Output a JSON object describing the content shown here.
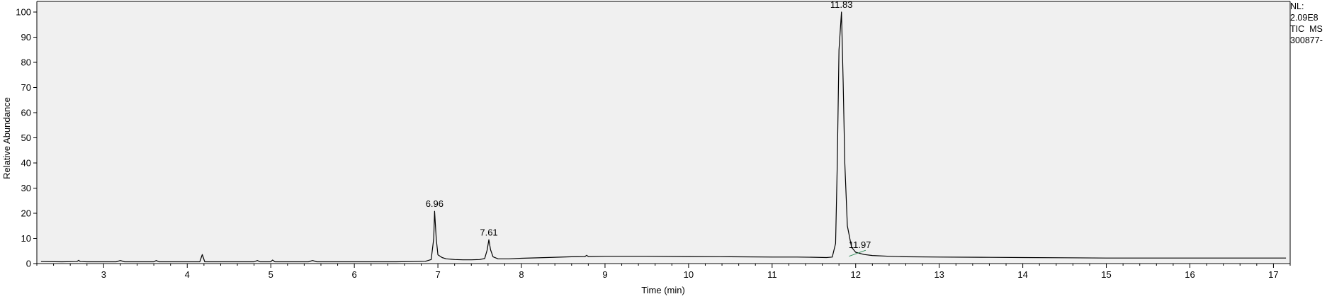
{
  "side_notes": {
    "nl_label": "NL:",
    "nl_value": "2.09E8",
    "scan_filter": "TIC  MS",
    "file_name": "300877-"
  },
  "chart_data": {
    "type": "line",
    "title": "",
    "xlabel": "Time (min)",
    "ylabel": "Relative Abundance",
    "xlim": [
      2.2,
      17.2
    ],
    "ylim": [
      0,
      100
    ],
    "x_ticks": [
      3,
      4,
      5,
      6,
      7,
      8,
      9,
      10,
      11,
      12,
      13,
      14,
      15,
      16,
      17
    ],
    "y_ticks": [
      0,
      10,
      20,
      30,
      40,
      50,
      60,
      70,
      80,
      90,
      100
    ],
    "grid": false,
    "background": "#f0f0f0",
    "line_color": "#000000",
    "annotation_line_color": "#2e8b57",
    "series": [
      {
        "x": [
          2.25,
          2.5,
          2.68,
          2.7,
          2.72,
          2.8,
          3.0,
          3.15,
          3.2,
          3.25,
          3.4,
          3.6,
          3.63,
          3.66,
          3.8,
          4.0,
          4.15,
          4.18,
          4.21,
          4.4,
          4.6,
          4.8,
          4.84,
          4.87,
          4.9,
          5.0,
          5.02,
          5.05,
          5.2,
          5.45,
          5.5,
          5.55,
          5.8,
          6.0,
          6.2,
          6.5,
          6.7,
          6.85,
          6.92,
          6.95,
          6.96,
          6.98,
          7.0,
          7.05,
          7.1,
          7.2,
          7.3,
          7.4,
          7.5,
          7.56,
          7.59,
          7.61,
          7.63,
          7.66,
          7.72,
          7.85,
          8.0,
          8.3,
          8.6,
          8.76,
          8.78,
          8.8,
          9.0,
          9.5,
          10.0,
          10.5,
          11.0,
          11.3,
          11.5,
          11.65,
          11.72,
          11.76,
          11.78,
          11.8,
          11.83,
          11.85,
          11.87,
          11.9,
          11.95,
          12.0,
          12.1,
          12.2,
          12.4,
          12.6,
          13.0,
          13.5,
          14.0,
          14.5,
          15.0,
          15.5,
          16.0,
          16.5,
          17.0,
          17.15
        ],
        "y": [
          0.8,
          0.7,
          0.8,
          1.3,
          0.8,
          0.7,
          0.7,
          0.7,
          1.2,
          0.7,
          0.7,
          0.7,
          1.2,
          0.7,
          0.7,
          0.7,
          0.7,
          3.6,
          0.7,
          0.7,
          0.7,
          0.7,
          1.2,
          0.7,
          0.7,
          0.7,
          1.4,
          0.7,
          0.7,
          0.7,
          1.2,
          0.7,
          0.7,
          0.7,
          0.7,
          0.7,
          0.8,
          0.9,
          1.6,
          10.0,
          20.8,
          10.0,
          3.5,
          2.4,
          1.9,
          1.6,
          1.5,
          1.5,
          1.6,
          2.0,
          5.5,
          9.5,
          5.5,
          2.7,
          1.9,
          1.9,
          2.1,
          2.4,
          2.7,
          2.8,
          3.3,
          2.8,
          2.9,
          2.9,
          2.8,
          2.7,
          2.6,
          2.6,
          2.5,
          2.4,
          2.6,
          8.0,
          40.0,
          85.0,
          100.0,
          72.0,
          40.0,
          15.0,
          6.5,
          4.5,
          3.6,
          3.2,
          2.9,
          2.7,
          2.6,
          2.5,
          2.4,
          2.3,
          2.2,
          2.2,
          2.2,
          2.2,
          2.2,
          2.2
        ]
      }
    ],
    "peak_labels": [
      {
        "rt": 6.96,
        "text": "6.96",
        "y": 20.8
      },
      {
        "rt": 7.61,
        "text": "7.61",
        "y": 9.5
      },
      {
        "rt": 11.83,
        "text": "11.83",
        "y": 100.0
      },
      {
        "rt": 11.97,
        "text": "11.97",
        "y": 6.0
      }
    ]
  }
}
